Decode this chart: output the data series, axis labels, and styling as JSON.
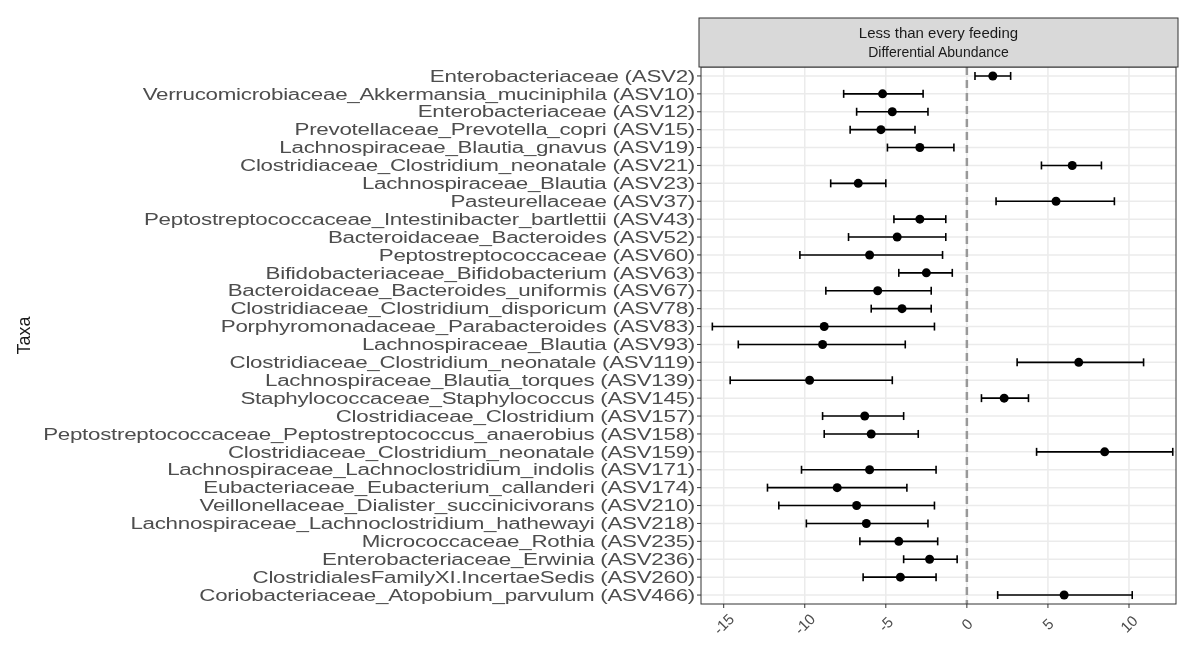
{
  "chart_data": {
    "type": "scatter",
    "title": "Less than every feeding",
    "subtitle": "Differential Abundance",
    "ylabel": "Taxa",
    "orientation": "horizontal",
    "categories": [
      "Enterobacteriaceae (ASV2)",
      "Verrucomicrobiaceae_Akkermansia_muciniphila (ASV10)",
      "Enterobacteriaceae (ASV12)",
      "Prevotellaceae_Prevotella_copri (ASV15)",
      "Lachnospiraceae_Blautia_gnavus (ASV19)",
      "Clostridiaceae_Clostridium_neonatale (ASV21)",
      "Lachnospiraceae_Blautia (ASV23)",
      "Pasteurellaceae (ASV37)",
      "Peptostreptococcaceae_Intestinibacter_bartlettii (ASV43)",
      "Bacteroidaceae_Bacteroides (ASV52)",
      "Peptostreptococcaceae (ASV60)",
      "Bifidobacteriaceae_Bifidobacterium (ASV63)",
      "Bacteroidaceae_Bacteroides_uniformis (ASV67)",
      "Clostridiaceae_Clostridium_disporicum (ASV78)",
      "Porphyromonadaceae_Parabacteroides (ASV83)",
      "Lachnospiraceae_Blautia (ASV93)",
      "Clostridiaceae_Clostridium_neonatale (ASV119)",
      "Lachnospiraceae_Blautia_torques (ASV139)",
      "Staphylococcaceae_Staphylococcus (ASV145)",
      "Clostridiaceae_Clostridium (ASV157)",
      "Peptostreptococcaceae_Peptostreptococcus_anaerobius (ASV158)",
      "Clostridiaceae_Clostridium_neonatale (ASV159)",
      "Lachnospiraceae_Lachnoclostridium_indolis (ASV171)",
      "Eubacteriaceae_Eubacterium_callanderi (ASV174)",
      "Veillonellaceae_Dialister_succinicivorans (ASV210)",
      "Lachnospiraceae_Lachnoclostridium_hathewayi (ASV218)",
      "Micrococcaceae_Rothia (ASV235)",
      "Enterobacteriaceae_Erwinia (ASV236)",
      "ClostridialesFamilyXI.IncertaeSedis (ASV260)",
      "Coriobacteriaceae_Atopobium_parvulum (ASV466)"
    ],
    "series": [
      {
        "color": "#000000",
        "values": [
          1.6,
          -5.2,
          -4.6,
          -5.3,
          -2.9,
          6.5,
          -6.7,
          5.5,
          -2.9,
          -4.3,
          -6.0,
          -2.5,
          -5.5,
          -4.0,
          -8.8,
          -8.9,
          6.9,
          -9.7,
          2.3,
          -6.3,
          -5.9,
          8.5,
          -6.0,
          -8.0,
          -6.8,
          -6.2,
          -4.2,
          -2.3,
          -4.1,
          6.0
        ],
        "errors": [
          [
            0.5,
            2.7
          ],
          [
            -7.6,
            -2.7
          ],
          [
            -6.8,
            -2.4
          ],
          [
            -7.2,
            -3.2
          ],
          [
            -4.9,
            -0.8
          ],
          [
            4.6,
            8.3
          ],
          [
            -8.4,
            -5.0
          ],
          [
            1.8,
            9.1
          ],
          [
            -4.5,
            -1.3
          ],
          [
            -7.3,
            -1.3
          ],
          [
            -10.3,
            -1.5
          ],
          [
            -4.2,
            -0.9
          ],
          [
            -8.7,
            -2.2
          ],
          [
            -5.9,
            -2.2
          ],
          [
            -15.7,
            -2.0
          ],
          [
            -14.1,
            -3.8
          ],
          [
            3.1,
            10.9
          ],
          [
            -14.6,
            -4.6
          ],
          [
            0.9,
            3.8
          ],
          [
            -8.9,
            -3.9
          ],
          [
            -8.8,
            -3.0
          ],
          [
            4.3,
            12.7
          ],
          [
            -10.2,
            -1.9
          ],
          [
            -12.3,
            -3.7
          ],
          [
            -11.6,
            -2.0
          ],
          [
            -9.9,
            -2.4
          ],
          [
            -6.6,
            -1.8
          ],
          [
            -3.9,
            -0.6
          ],
          [
            -6.4,
            -1.9
          ],
          [
            1.9,
            10.2
          ]
        ]
      }
    ],
    "xlim": [
      -16.4,
      12.9
    ],
    "xticks": [
      -15,
      -10,
      -5,
      0,
      5,
      10
    ],
    "grid": true,
    "marker": "circle",
    "ref_lines": [
      {
        "axis": "x",
        "value": 0,
        "color": "#999999",
        "line_style": "dashed"
      }
    ]
  }
}
